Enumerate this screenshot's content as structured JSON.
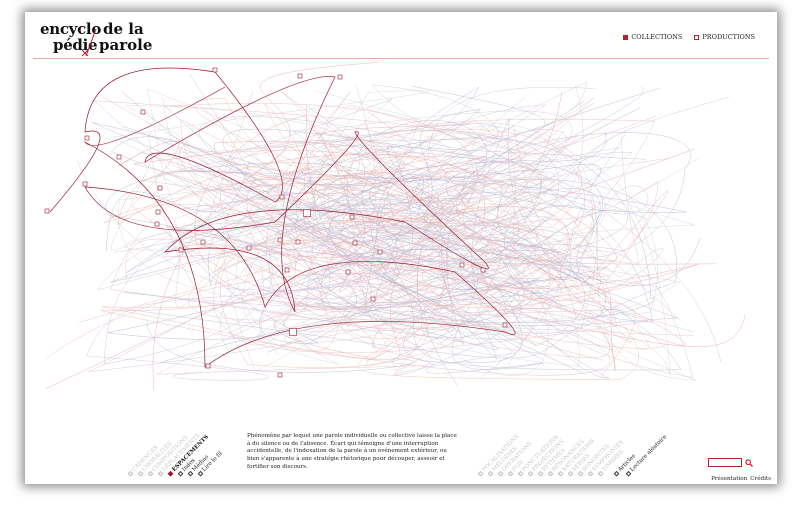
{
  "logo": {
    "line1_left": "encyclo",
    "line2_left": "pédie",
    "line1_right": "de la",
    "line2_right": "parole"
  },
  "nav": {
    "collections": "COLLECTIONS",
    "productions": "PRODUCTIONS"
  },
  "description": "Phénomène par lequel une parole individuelle ou collective laisse la place à du silence ou de l'absence. Écart qui témoigne d'une interruption accidentelle, de l'indexation de la parole à un événement extérieur, ou bien s'apparente à une stratégie rhétorique pour découper, asseoir et fortifier son discours.",
  "left_categories": [
    {
      "label": "CADENCES",
      "state": "dim"
    },
    {
      "label": "CHORALITÉS",
      "state": "dim"
    },
    {
      "label": "COMPOSITIONS",
      "state": "dim"
    },
    {
      "label": "DÉPLACEMENTS",
      "state": "dim"
    },
    {
      "label": "ESPACEMENTS",
      "state": "active"
    },
    {
      "label": "Index",
      "state": "dark"
    },
    {
      "label": "Médias",
      "state": "dark"
    },
    {
      "label": "Lire le fil",
      "state": "dark"
    }
  ],
  "right_categories": [
    {
      "label": "FOCALISATIONS",
      "state": "dim"
    },
    {
      "label": "MÉLODIES",
      "state": "dim"
    },
    {
      "label": "OPÉRATIONS",
      "state": "dim"
    },
    {
      "label": "PLIS",
      "state": "dim"
    },
    {
      "label": "PONCTUATIONS",
      "state": "dim"
    },
    {
      "label": "PROJECTIONS",
      "state": "dim"
    },
    {
      "label": "RYTHMES",
      "state": "dim"
    },
    {
      "label": "RÉSONANCES",
      "state": "dim"
    },
    {
      "label": "SATURATIONS",
      "state": "dim"
    },
    {
      "label": "SÉRIES",
      "state": "dim"
    },
    {
      "label": "SONORITÉS",
      "state": "dim"
    },
    {
      "label": "SYMPHONIES",
      "state": "dim"
    },
    {
      "label": "TIMBRES",
      "state": "dim"
    }
  ],
  "far_right_links": [
    {
      "label": "Articles"
    },
    {
      "label": "Lecture aléatoire"
    }
  ],
  "search": {
    "placeholder": "",
    "icon": "search-icon"
  },
  "footer": {
    "presentation": "Présentation",
    "credits": "Crédits"
  },
  "colors": {
    "accent": "#c0202a",
    "thread": "#9b1b30"
  }
}
